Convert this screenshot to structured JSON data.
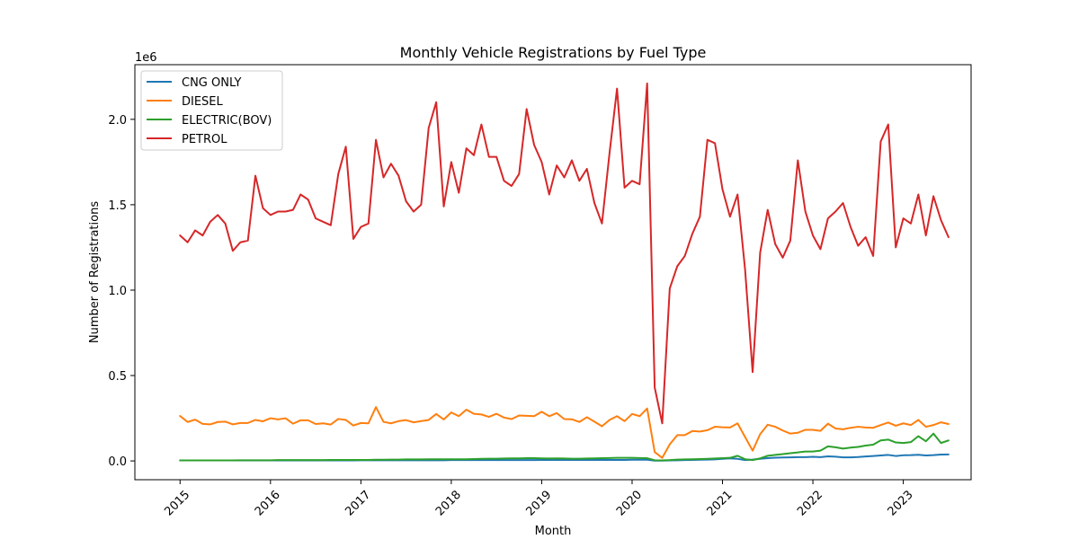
{
  "chart_data": {
    "type": "line",
    "title": "Monthly Vehicle Registrations by Fuel Type",
    "xlabel": "Month",
    "ylabel": "Number of Registrations",
    "y_offset_label": "1e6",
    "x_start": "2015-01",
    "xlim": [
      "2014-07",
      "2023-10"
    ],
    "ylim": [
      -0.11,
      2.32
    ],
    "y_unit_multiplier": 1000000,
    "x_ticks": [
      "2015",
      "2016",
      "2017",
      "2018",
      "2019",
      "2020",
      "2021",
      "2022",
      "2023"
    ],
    "y_ticks": [
      "0.0",
      "0.5",
      "1.0",
      "1.5",
      "2.0"
    ],
    "y_tick_values": [
      0.0,
      0.5,
      1.0,
      1.5,
      2.0
    ],
    "legend_position": "top-left",
    "grid": false,
    "series": [
      {
        "name": "CNG ONLY",
        "color": "#1f77b4",
        "values": [
          0.003,
          0.003,
          0.003,
          0.003,
          0.003,
          0.003,
          0.003,
          0.003,
          0.003,
          0.003,
          0.003,
          0.003,
          0.003,
          0.003,
          0.003,
          0.003,
          0.003,
          0.003,
          0.003,
          0.003,
          0.003,
          0.003,
          0.003,
          0.003,
          0.004,
          0.004,
          0.004,
          0.004,
          0.004,
          0.004,
          0.004,
          0.004,
          0.004,
          0.004,
          0.004,
          0.004,
          0.005,
          0.005,
          0.005,
          0.005,
          0.005,
          0.005,
          0.005,
          0.005,
          0.005,
          0.005,
          0.005,
          0.005,
          0.006,
          0.006,
          0.006,
          0.006,
          0.006,
          0.006,
          0.006,
          0.006,
          0.006,
          0.006,
          0.006,
          0.006,
          0.007,
          0.007,
          0.007,
          0.002,
          0.002,
          0.003,
          0.004,
          0.005,
          0.006,
          0.007,
          0.008,
          0.009,
          0.012,
          0.015,
          0.012,
          0.005,
          0.008,
          0.012,
          0.016,
          0.019,
          0.02,
          0.021,
          0.022,
          0.022,
          0.024,
          0.022,
          0.027,
          0.025,
          0.021,
          0.021,
          0.023,
          0.026,
          0.029,
          0.032,
          0.035,
          0.029,
          0.033,
          0.034,
          0.036,
          0.032,
          0.034,
          0.037,
          0.038
        ]
      },
      {
        "name": "DIESEL",
        "color": "#ff7f0e",
        "values": [
          0.263,
          0.228,
          0.242,
          0.217,
          0.214,
          0.228,
          0.23,
          0.214,
          0.222,
          0.222,
          0.24,
          0.232,
          0.25,
          0.243,
          0.25,
          0.218,
          0.238,
          0.238,
          0.216,
          0.22,
          0.213,
          0.246,
          0.24,
          0.207,
          0.222,
          0.22,
          0.315,
          0.229,
          0.22,
          0.233,
          0.239,
          0.226,
          0.233,
          0.24,
          0.275,
          0.243,
          0.284,
          0.262,
          0.3,
          0.276,
          0.272,
          0.258,
          0.276,
          0.254,
          0.245,
          0.266,
          0.264,
          0.262,
          0.288,
          0.262,
          0.28,
          0.245,
          0.244,
          0.228,
          0.256,
          0.23,
          0.203,
          0.24,
          0.262,
          0.233,
          0.275,
          0.262,
          0.307,
          0.052,
          0.018,
          0.097,
          0.151,
          0.151,
          0.175,
          0.172,
          0.18,
          0.2,
          0.197,
          0.196,
          0.22,
          0.14,
          0.06,
          0.157,
          0.212,
          0.2,
          0.178,
          0.16,
          0.165,
          0.182,
          0.182,
          0.176,
          0.218,
          0.19,
          0.185,
          0.194,
          0.2,
          0.196,
          0.194,
          0.21,
          0.225,
          0.206,
          0.22,
          0.21,
          0.24,
          0.2,
          0.21,
          0.226,
          0.216
        ]
      },
      {
        "name": "ELECTRIC(BOV)",
        "color": "#2ca02c",
        "values": [
          0.003,
          0.003,
          0.003,
          0.003,
          0.003,
          0.003,
          0.003,
          0.003,
          0.004,
          0.004,
          0.004,
          0.004,
          0.004,
          0.005,
          0.005,
          0.005,
          0.005,
          0.005,
          0.005,
          0.005,
          0.006,
          0.006,
          0.006,
          0.006,
          0.006,
          0.006,
          0.007,
          0.007,
          0.008,
          0.008,
          0.009,
          0.009,
          0.009,
          0.01,
          0.01,
          0.01,
          0.01,
          0.01,
          0.01,
          0.011,
          0.012,
          0.013,
          0.013,
          0.014,
          0.015,
          0.015,
          0.016,
          0.016,
          0.015,
          0.014,
          0.015,
          0.014,
          0.013,
          0.013,
          0.014,
          0.015,
          0.016,
          0.017,
          0.018,
          0.018,
          0.018,
          0.017,
          0.016,
          0.004,
          0.003,
          0.005,
          0.008,
          0.009,
          0.01,
          0.011,
          0.012,
          0.014,
          0.016,
          0.018,
          0.03,
          0.01,
          0.005,
          0.015,
          0.03,
          0.035,
          0.04,
          0.045,
          0.05,
          0.055,
          0.055,
          0.06,
          0.085,
          0.08,
          0.072,
          0.078,
          0.082,
          0.09,
          0.095,
          0.12,
          0.125,
          0.108,
          0.105,
          0.11,
          0.145,
          0.115,
          0.16,
          0.105,
          0.12
        ]
      },
      {
        "name": "PETROL",
        "color": "#d62728",
        "values": [
          1.32,
          1.28,
          1.35,
          1.32,
          1.4,
          1.44,
          1.39,
          1.23,
          1.28,
          1.29,
          1.67,
          1.48,
          1.44,
          1.46,
          1.46,
          1.47,
          1.56,
          1.53,
          1.42,
          1.4,
          1.38,
          1.68,
          1.84,
          1.3,
          1.37,
          1.39,
          1.88,
          1.66,
          1.74,
          1.67,
          1.52,
          1.46,
          1.5,
          1.95,
          2.1,
          1.49,
          1.75,
          1.57,
          1.83,
          1.79,
          1.97,
          1.78,
          1.78,
          1.64,
          1.61,
          1.68,
          2.06,
          1.85,
          1.75,
          1.56,
          1.73,
          1.66,
          1.76,
          1.64,
          1.71,
          1.51,
          1.39,
          1.8,
          2.18,
          1.6,
          1.64,
          1.62,
          2.21,
          0.43,
          0.22,
          1.01,
          1.14,
          1.2,
          1.33,
          1.43,
          1.88,
          1.86,
          1.59,
          1.43,
          1.56,
          1.12,
          0.52,
          1.22,
          1.47,
          1.27,
          1.19,
          1.29,
          1.76,
          1.46,
          1.32,
          1.24,
          1.42,
          1.46,
          1.51,
          1.37,
          1.26,
          1.31,
          1.2,
          1.87,
          1.97,
          1.25,
          1.42,
          1.39,
          1.56,
          1.32,
          1.55,
          1.41,
          1.31
        ]
      }
    ]
  }
}
